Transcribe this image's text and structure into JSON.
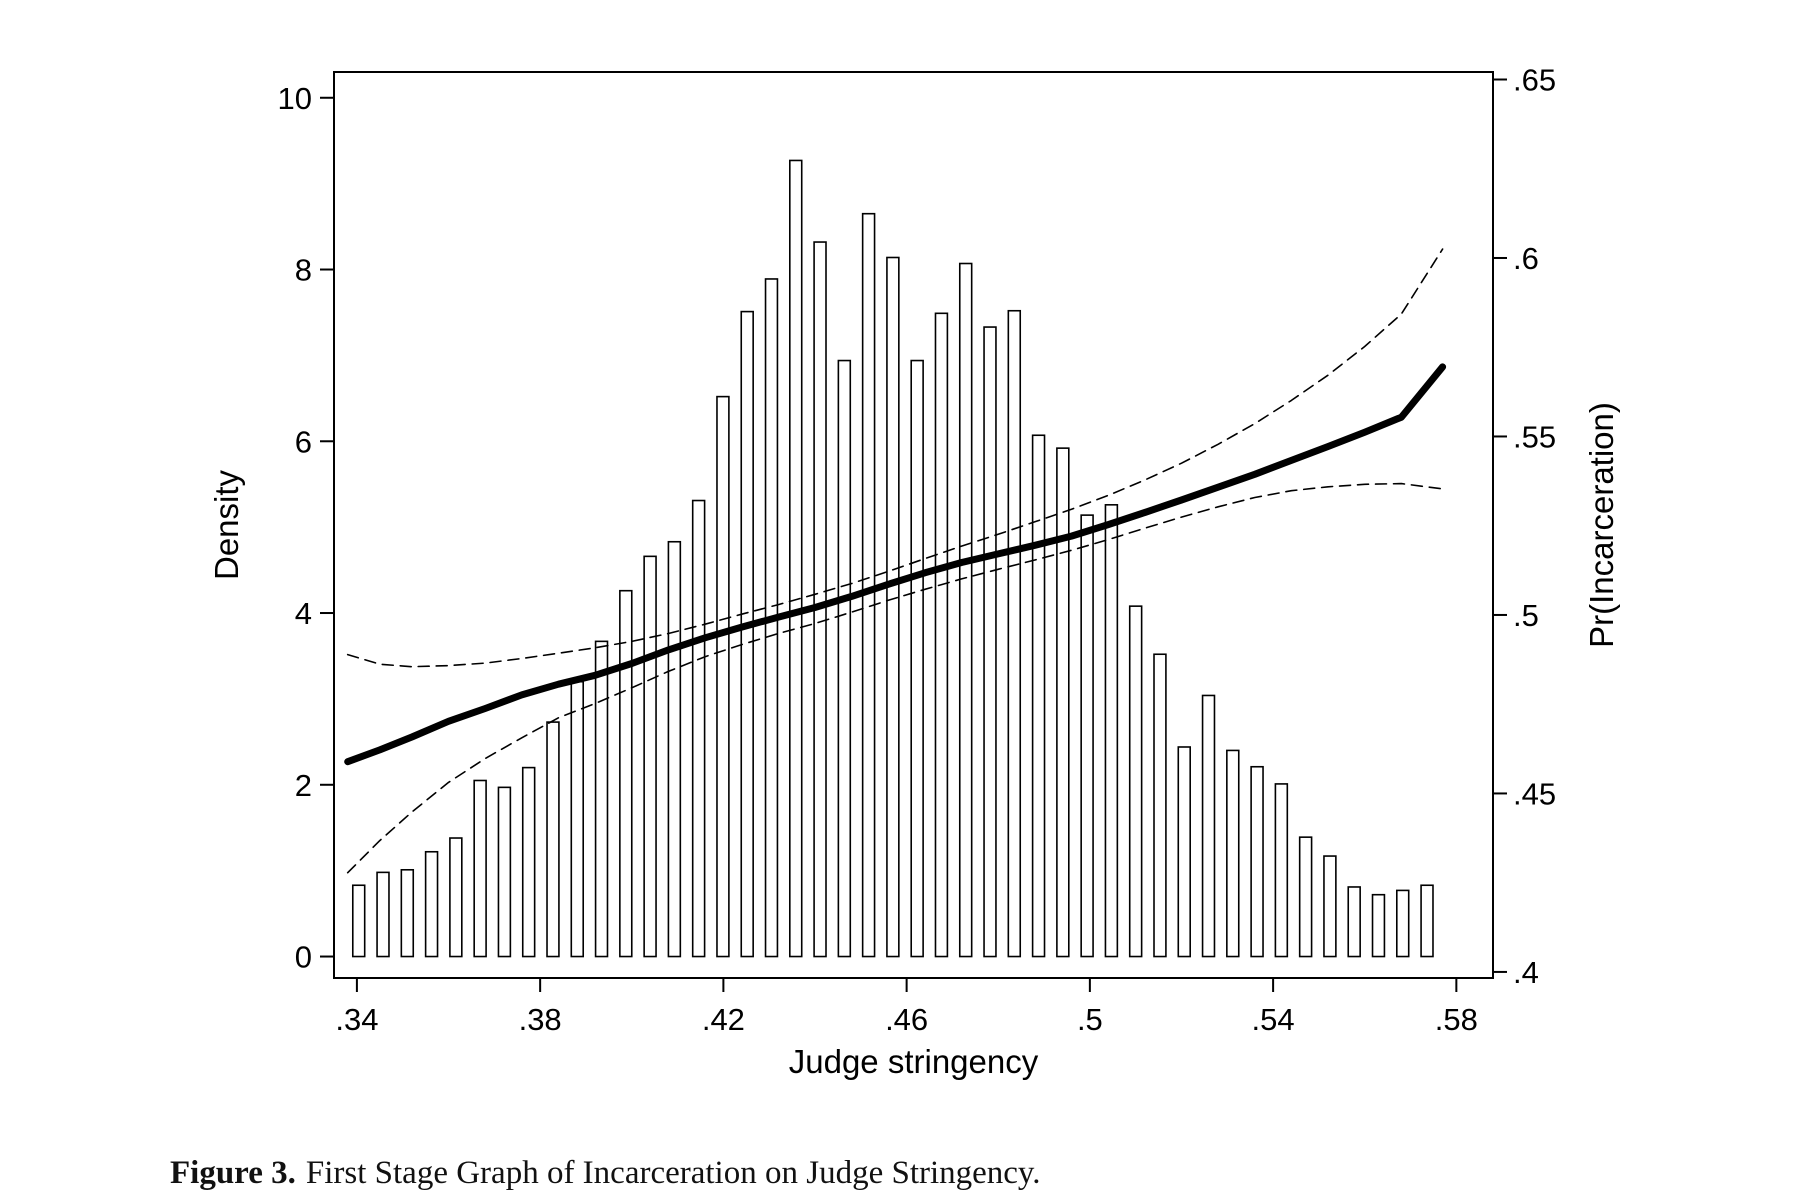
{
  "figure": {
    "label": "Figure 3.",
    "caption": "First Stage Graph of Incarceration on Judge Stringency."
  },
  "chart_data": {
    "type": "bar",
    "title": "",
    "xlabel": "Judge stringency",
    "ylabel": "Density",
    "y2label": "Pr(Incarceration)",
    "xlim": [
      0.335,
      0.588
    ],
    "ylim": [
      -0.25,
      10.3
    ],
    "y2lim": [
      0.3983,
      0.6521
    ],
    "x_ticks": [
      0.34,
      0.38,
      0.42,
      0.46,
      0.5,
      0.54,
      0.58
    ],
    "x_tick_labels": [
      ".34",
      ".38",
      ".42",
      ".46",
      ".5",
      ".54",
      ".58"
    ],
    "y_ticks": [
      0,
      2,
      4,
      6,
      8,
      10
    ],
    "y_tick_labels": [
      "0",
      "2",
      "4",
      "6",
      "8",
      "10"
    ],
    "y2_ticks": [
      0.4,
      0.45,
      0.5,
      0.55,
      0.6,
      0.65
    ],
    "y2_tick_labels": [
      ".4",
      ".45",
      ".5",
      ".55",
      ".6",
      ".65"
    ],
    "grid": false,
    "histogram": {
      "name": "Density",
      "bar_width": 0.0026,
      "x": [
        0.3404,
        0.3457,
        0.351,
        0.3563,
        0.3616,
        0.3669,
        0.3722,
        0.3775,
        0.3828,
        0.3881,
        0.3934,
        0.3987,
        0.404,
        0.4093,
        0.4146,
        0.4199,
        0.4252,
        0.4305,
        0.4358,
        0.4411,
        0.4464,
        0.4517,
        0.457,
        0.4623,
        0.4676,
        0.4729,
        0.4782,
        0.4835,
        0.4888,
        0.4941,
        0.4994,
        0.5047,
        0.51,
        0.5153,
        0.5206,
        0.5259,
        0.5312,
        0.5365,
        0.5418,
        0.5471,
        0.5524,
        0.5577,
        0.563,
        0.5683,
        0.5736
      ],
      "values": [
        0.83,
        0.98,
        1.01,
        1.22,
        1.38,
        2.05,
        1.97,
        2.2,
        2.73,
        3.2,
        3.67,
        4.26,
        4.66,
        4.83,
        5.31,
        6.52,
        7.51,
        7.89,
        9.27,
        8.32,
        6.94,
        8.65,
        8.14,
        6.94,
        7.49,
        8.07,
        7.33,
        7.52,
        6.07,
        5.92,
        5.14,
        5.26,
        4.08,
        3.52,
        2.44,
        3.04,
        2.4,
        2.21,
        2.01,
        1.39,
        1.17,
        0.81,
        0.72,
        0.77,
        0.83
      ]
    },
    "series": [
      {
        "style": "solid-thick",
        "axis": "right",
        "x": [
          0.338,
          0.345,
          0.352,
          0.36,
          0.368,
          0.376,
          0.384,
          0.392,
          0.4,
          0.408,
          0.416,
          0.424,
          0.432,
          0.44,
          0.448,
          0.456,
          0.464,
          0.472,
          0.48,
          0.488,
          0.496,
          0.504,
          0.512,
          0.52,
          0.528,
          0.536,
          0.544,
          0.552,
          0.56,
          0.568,
          0.577
        ],
        "values": [
          0.4589,
          0.4622,
          0.4658,
          0.4702,
          0.4738,
          0.4776,
          0.4806,
          0.4831,
          0.4864,
          0.4902,
          0.4936,
          0.4966,
          0.4994,
          0.5021,
          0.5052,
          0.5086,
          0.5118,
          0.5147,
          0.5171,
          0.5195,
          0.5221,
          0.5253,
          0.5287,
          0.5322,
          0.5358,
          0.5394,
          0.5433,
          0.5472,
          0.5512,
          0.5554,
          0.5695
        ]
      },
      {
        "style": "dashed",
        "axis": "right",
        "x": [
          0.338,
          0.345,
          0.352,
          0.36,
          0.368,
          0.376,
          0.384,
          0.392,
          0.4,
          0.408,
          0.416,
          0.424,
          0.432,
          0.44,
          0.448,
          0.456,
          0.464,
          0.472,
          0.48,
          0.488,
          0.496,
          0.504,
          0.512,
          0.52,
          0.528,
          0.536,
          0.544,
          0.552,
          0.56,
          0.568,
          0.577
        ],
        "values": [
          0.4889,
          0.4862,
          0.4855,
          0.4858,
          0.4865,
          0.4878,
          0.4893,
          0.4908,
          0.4926,
          0.4948,
          0.4974,
          0.5002,
          0.5029,
          0.5058,
          0.5088,
          0.5122,
          0.5158,
          0.5193,
          0.5226,
          0.5261,
          0.5296,
          0.5335,
          0.5378,
          0.5425,
          0.5478,
          0.5536,
          0.5601,
          0.5672,
          0.5752,
          0.5843,
          0.6025
        ]
      },
      {
        "style": "dashed",
        "axis": "right",
        "x": [
          0.338,
          0.345,
          0.352,
          0.36,
          0.368,
          0.376,
          0.384,
          0.392,
          0.4,
          0.408,
          0.416,
          0.424,
          0.432,
          0.44,
          0.448,
          0.456,
          0.464,
          0.472,
          0.48,
          0.488,
          0.496,
          0.504,
          0.512,
          0.52,
          0.528,
          0.536,
          0.544,
          0.552,
          0.56,
          0.568,
          0.577
        ],
        "values": [
          0.4278,
          0.4368,
          0.4448,
          0.4531,
          0.4598,
          0.4656,
          0.4712,
          0.4752,
          0.4796,
          0.4842,
          0.4883,
          0.4917,
          0.4948,
          0.4976,
          0.5008,
          0.5041,
          0.5072,
          0.5101,
          0.5128,
          0.5154,
          0.5181,
          0.5211,
          0.5243,
          0.5274,
          0.5303,
          0.5329,
          0.5348,
          0.5359,
          0.5366,
          0.5368,
          0.5353
        ]
      }
    ]
  }
}
